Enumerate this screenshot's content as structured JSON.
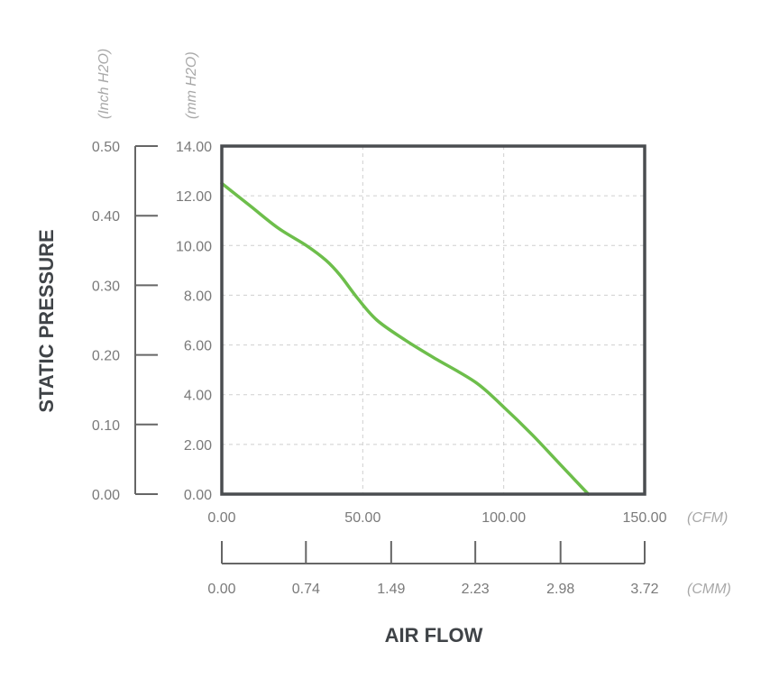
{
  "chart_data": {
    "type": "line",
    "title": "",
    "xlabel": "AIR FLOW",
    "ylabel": "STATIC PRESSURE",
    "x_unit_primary": "(CFM)",
    "x_unit_secondary": "(CMM)",
    "y_unit_primary": "(mm H2O)",
    "y_unit_secondary": "(Inch H2O)",
    "xlim": [
      0,
      150
    ],
    "ylim": [
      0,
      14
    ],
    "secondary_ylim": [
      0,
      0.5
    ],
    "secondary_xlim": [
      0,
      3.72
    ],
    "x_ticks": [
      "0.00",
      "50.00",
      "100.00",
      "150.00"
    ],
    "y_ticks": [
      "0.00",
      "2.00",
      "4.00",
      "6.00",
      "8.00",
      "10.00",
      "12.00",
      "14.00"
    ],
    "secondary_y_ticks": [
      "0.00",
      "0.10",
      "0.20",
      "0.30",
      "0.40",
      "0.50"
    ],
    "secondary_x_ticks": [
      "0.00",
      "0.74",
      "1.49",
      "2.23",
      "2.98",
      "3.72"
    ],
    "grid": true,
    "line_color": "#6dbe4b",
    "frame_color": "#4a4d50",
    "series": [
      {
        "x": [
          0,
          10,
          20,
          30,
          37,
          42,
          48,
          55,
          65,
          75,
          90,
          100,
          110,
          120,
          130
        ],
        "y": [
          12.5,
          11.6,
          10.7,
          10.0,
          9.4,
          8.8,
          7.9,
          7.0,
          6.2,
          5.5,
          4.5,
          3.5,
          2.4,
          1.2,
          0.0
        ]
      }
    ]
  }
}
